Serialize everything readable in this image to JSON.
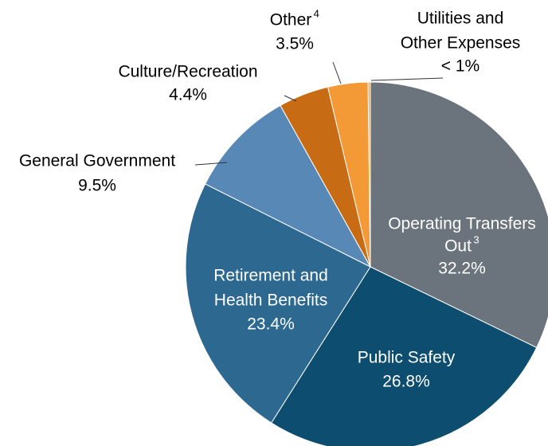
{
  "chart_data": {
    "type": "pie",
    "categories": [
      [
        "Operating Transfers",
        "Out"
      ],
      [
        "Public Safety"
      ],
      [
        "Retirement and",
        "Health Benefits"
      ],
      [
        "General Government"
      ],
      [
        "Culture/Recreation"
      ],
      [
        "Other"
      ],
      [
        "Utilities and",
        "Other Expenses"
      ]
    ],
    "footnotes": [
      "3",
      null,
      null,
      null,
      null,
      "4",
      null
    ],
    "values": [
      32.2,
      26.8,
      23.4,
      9.5,
      4.4,
      3.5,
      0.2
    ],
    "value_labels": [
      "32.2%",
      "26.8%",
      "23.4%",
      "9.5%",
      "4.4%",
      "3.5%",
      "< 1%"
    ],
    "colors": [
      "#6b747c",
      "#0d4d6f",
      "#2c6890",
      "#5889b6",
      "#c76b14",
      "#f39a36",
      "#f5a94c"
    ]
  }
}
